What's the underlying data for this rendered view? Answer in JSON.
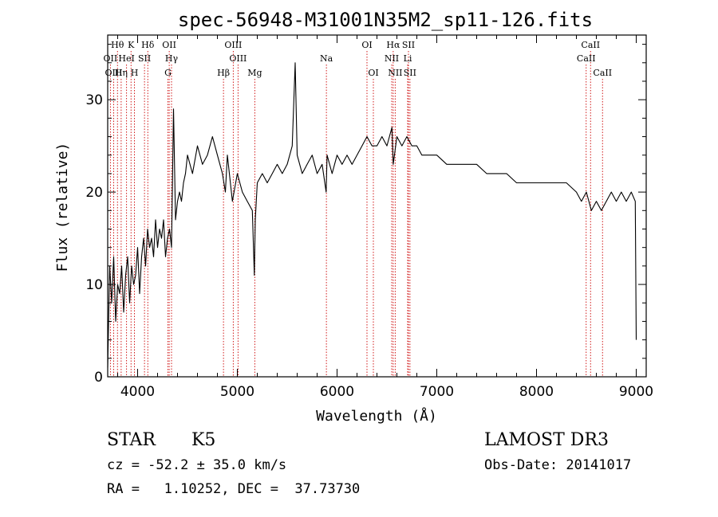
{
  "chart_data": {
    "type": "line",
    "title": "spec-56948-M31001N35M2_sp11-126.fits",
    "xlabel": "Wavelength (Å)",
    "ylabel": "Flux (relative)",
    "xlim": [
      3700,
      9100
    ],
    "ylim": [
      0,
      37
    ],
    "x_ticks": [
      4000,
      5000,
      6000,
      7000,
      8000,
      9000
    ],
    "x_tick_labels": [
      "4000",
      "5000",
      "6000",
      "7000",
      "8000",
      "9000"
    ],
    "y_ticks": [
      0,
      10,
      20,
      30
    ],
    "y_tick_labels": [
      "0",
      "10",
      "20",
      "30"
    ],
    "grid": false,
    "line_color": "#000000",
    "marker_color": "#cc0000",
    "spectrum": {
      "x": [
        3700,
        3720,
        3740,
        3760,
        3780,
        3800,
        3820,
        3840,
        3860,
        3880,
        3900,
        3920,
        3940,
        3960,
        3980,
        4000,
        4020,
        4040,
        4060,
        4080,
        4100,
        4120,
        4140,
        4160,
        4180,
        4200,
        4220,
        4240,
        4260,
        4280,
        4300,
        4320,
        4340,
        4360,
        4380,
        4400,
        4420,
        4440,
        4460,
        4480,
        4500,
        4550,
        4600,
        4650,
        4700,
        4750,
        4800,
        4850,
        4880,
        4900,
        4950,
        5000,
        5050,
        5100,
        5150,
        5170,
        5180,
        5200,
        5250,
        5300,
        5350,
        5400,
        5450,
        5500,
        5550,
        5580,
        5600,
        5650,
        5700,
        5750,
        5800,
        5850,
        5890,
        5900,
        5950,
        6000,
        6050,
        6100,
        6150,
        6200,
        6250,
        6300,
        6350,
        6400,
        6450,
        6500,
        6550,
        6563,
        6600,
        6650,
        6700,
        6750,
        6800,
        6850,
        6900,
        6950,
        7000,
        7100,
        7200,
        7300,
        7400,
        7500,
        7600,
        7700,
        7800,
        7900,
        8000,
        8100,
        8200,
        8300,
        8400,
        8450,
        8500,
        8550,
        8600,
        8650,
        8700,
        8750,
        8800,
        8850,
        8900,
        8950,
        8990,
        9000
      ],
      "y": [
        1,
        12,
        8,
        13,
        6,
        10,
        9,
        12,
        7,
        11,
        13,
        8,
        12,
        10,
        11,
        14,
        9,
        13,
        15,
        12,
        16,
        14,
        15,
        13,
        17,
        14,
        16,
        15,
        17,
        13,
        15,
        16,
        14,
        29,
        17,
        19,
        20,
        19,
        21,
        22,
        24,
        22,
        25,
        23,
        24,
        26,
        24,
        22,
        20,
        24,
        19,
        22,
        20,
        19,
        18,
        11,
        17,
        21,
        22,
        21,
        22,
        23,
        22,
        23,
        25,
        34,
        24,
        22,
        23,
        24,
        22,
        23,
        20,
        24,
        22,
        24,
        23,
        24,
        23,
        24,
        25,
        26,
        25,
        25,
        26,
        25,
        27,
        23,
        26,
        25,
        26,
        25,
        25,
        24,
        24,
        24,
        24,
        23,
        23,
        23,
        23,
        22,
        22,
        22,
        21,
        21,
        21,
        21,
        21,
        21,
        20,
        19,
        20,
        18,
        19,
        18,
        19,
        20,
        19,
        20,
        19,
        20,
        19,
        4
      ]
    },
    "lines": [
      {
        "label": "Hθ",
        "x": 3798,
        "row": 0
      },
      {
        "label": "K",
        "x": 3934,
        "row": 0
      },
      {
        "label": "Hδ",
        "x": 4102,
        "row": 0
      },
      {
        "label": "OII",
        "x": 4317,
        "row": 0
      },
      {
        "label": "OIII",
        "x": 4959,
        "row": 0
      },
      {
        "label": "OI",
        "x": 6300,
        "row": 0
      },
      {
        "label": "Hα",
        "x": 6563,
        "row": 0
      },
      {
        "label": "SII",
        "x": 6716,
        "row": 0
      },
      {
        "label": "CaII",
        "x": 8542,
        "row": 0
      },
      {
        "label": "OII",
        "x": 3727,
        "row": 1
      },
      {
        "label": "HeI",
        "x": 3889,
        "row": 1
      },
      {
        "label": "SII",
        "x": 4069,
        "row": 1
      },
      {
        "label": "Hγ",
        "x": 4340,
        "row": 1
      },
      {
        "label": "OIII",
        "x": 5007,
        "row": 1
      },
      {
        "label": "Na",
        "x": 5893,
        "row": 1
      },
      {
        "label": "NII",
        "x": 6548,
        "row": 1
      },
      {
        "label": "Li",
        "x": 6708,
        "row": 1
      },
      {
        "label": "CaII",
        "x": 8498,
        "row": 1
      },
      {
        "label": "OIII",
        "x": 3760,
        "row": 2
      },
      {
        "label": "Hη",
        "x": 3835,
        "row": 2
      },
      {
        "label": "H",
        "x": 3968,
        "row": 2
      },
      {
        "label": "G",
        "x": 4304,
        "row": 2
      },
      {
        "label": "Hβ",
        "x": 4861,
        "row": 2
      },
      {
        "label": "Mg",
        "x": 5175,
        "row": 2
      },
      {
        "label": "OI",
        "x": 6364,
        "row": 2
      },
      {
        "label": "NII",
        "x": 6583,
        "row": 2
      },
      {
        "label": "SII",
        "x": 6731,
        "row": 2
      },
      {
        "label": "CaII",
        "x": 8662,
        "row": 2
      }
    ]
  },
  "info": {
    "class_label": "STAR",
    "subclass_label": "K5",
    "survey_label": "LAMOST DR3",
    "cz_text": "cz = -52.2 ± 35.0 km/s",
    "obs_date_text": "Obs-Date: 20141017",
    "radec_text": "RA =   1.10252, DEC =  37.73730"
  }
}
